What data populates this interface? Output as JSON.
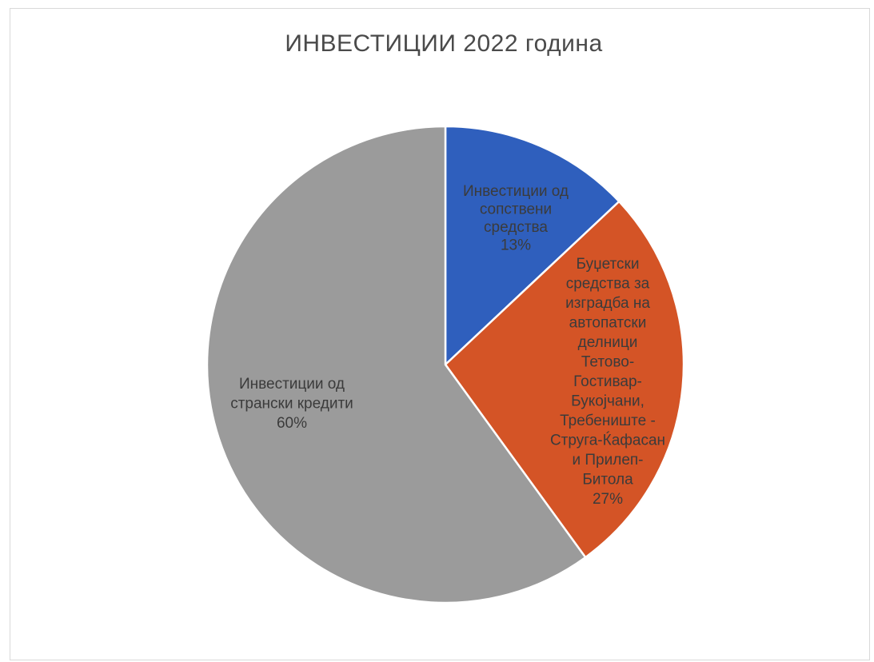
{
  "chart_data": {
    "type": "pie",
    "title": "ИНВЕСТИЦИИ 2022 година",
    "slices": [
      {
        "label": "Инвестиции од сопствени средства",
        "label_lines": [
          "Инвестиции од",
          "сопствени",
          "средства"
        ],
        "value": 13,
        "value_label": "13%",
        "color": "#2f5fbd"
      },
      {
        "label": "Буџетски средства за изградба на автопатски делници Тетово-Гостивар-Букојчани, Требениште - Струга-Ќафасан и Прилеп-Битола",
        "label_lines": [
          "Буџетски",
          "средства за",
          "изградба на",
          "автопатски",
          "делници",
          "Тетово-",
          "Гостивар-",
          "Букојчани,",
          "Требениште -",
          "Струга-Ќафасан",
          "и Прилеп-",
          "Битола"
        ],
        "value": 27,
        "value_label": "27%",
        "color": "#d45426"
      },
      {
        "label": "Инвестиции од странски кредити",
        "label_lines": [
          "Инвестиции од",
          "странски кредити"
        ],
        "value": 60,
        "value_label": "60%",
        "color": "#9b9b9b"
      }
    ]
  }
}
